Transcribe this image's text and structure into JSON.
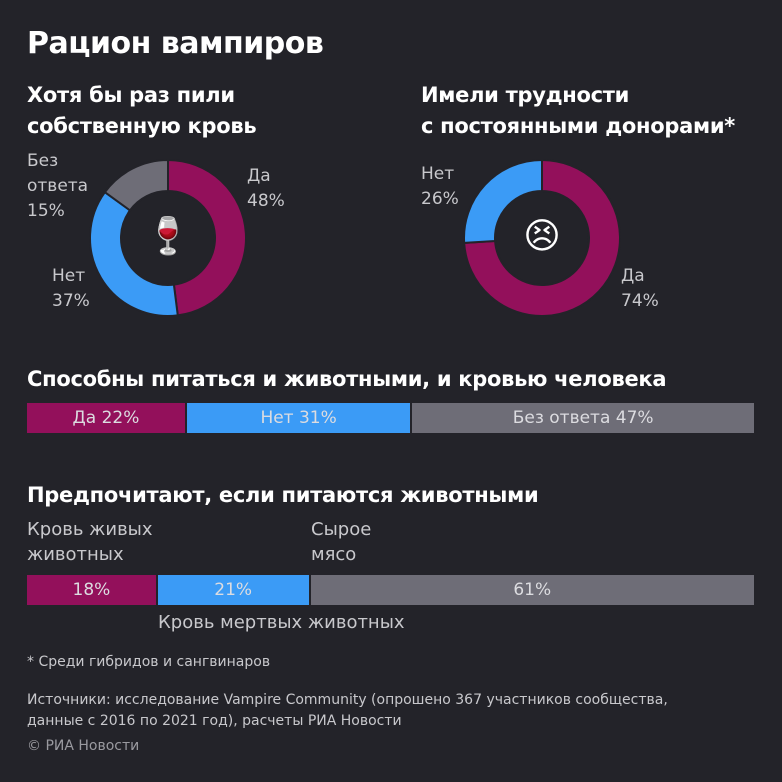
{
  "title": "Рацион вампиров",
  "colors": {
    "magenta": "#93105b",
    "blue": "#3b9bf6",
    "gray": "#6e6d77",
    "background": "#232329"
  },
  "chart_data": [
    {
      "type": "pie",
      "title": "Хотя бы раз пили собственную кровь",
      "title_lines": [
        "Хотя бы раз пили",
        "собственную кровь"
      ],
      "center_icon": "🍷",
      "slices": [
        {
          "name": "Да",
          "value": 48,
          "label": "48%"
        },
        {
          "name": "Нет",
          "value": 37,
          "label": "37%"
        },
        {
          "name_lines": [
            "Без",
            "ответа"
          ],
          "name": "Без ответа",
          "value": 15,
          "label": "15%"
        }
      ]
    },
    {
      "type": "pie",
      "title": "Имели трудности с постоянными донорами*",
      "title_lines": [
        "Имели трудности",
        "с постоянными донорами*"
      ],
      "center_icon": "😣",
      "slices": [
        {
          "name": "Да",
          "value": 74,
          "label": "74%"
        },
        {
          "name": "Нет",
          "value": 26,
          "label": "26%"
        }
      ]
    },
    {
      "type": "bar",
      "orientation": "stacked-horizontal",
      "title": "Способны питаться и животными, и кровью человека",
      "categories": [
        "Да",
        "Нет",
        "Без ответа"
      ],
      "values": [
        22,
        31,
        47
      ],
      "labels": [
        "Да 22%",
        "Нет 31%",
        "Без ответа 47%"
      ]
    },
    {
      "type": "bar",
      "orientation": "stacked-horizontal",
      "title": "Предпочитают, если питаются животными",
      "categories": [
        "Кровь живых животных",
        "Кровь мертвых животных",
        "Сырое мясо"
      ],
      "category_lines": [
        [
          "Кровь живых",
          "животных"
        ],
        [
          "Кровь мертвых животных"
        ],
        [
          "Сырое",
          "мясо"
        ]
      ],
      "values": [
        18,
        21,
        61
      ],
      "labels": [
        "18%",
        "21%",
        "61%"
      ]
    }
  ],
  "footnote": "* Среди гибридов и сангвинаров",
  "sources_lines": [
    "Источники: исследование Vampire Community (опрошено 367 участников сообщества,",
    "данные с 2016 по 2021 год), расчеты РИА Новости"
  ],
  "copyright": "© РИА Новости"
}
